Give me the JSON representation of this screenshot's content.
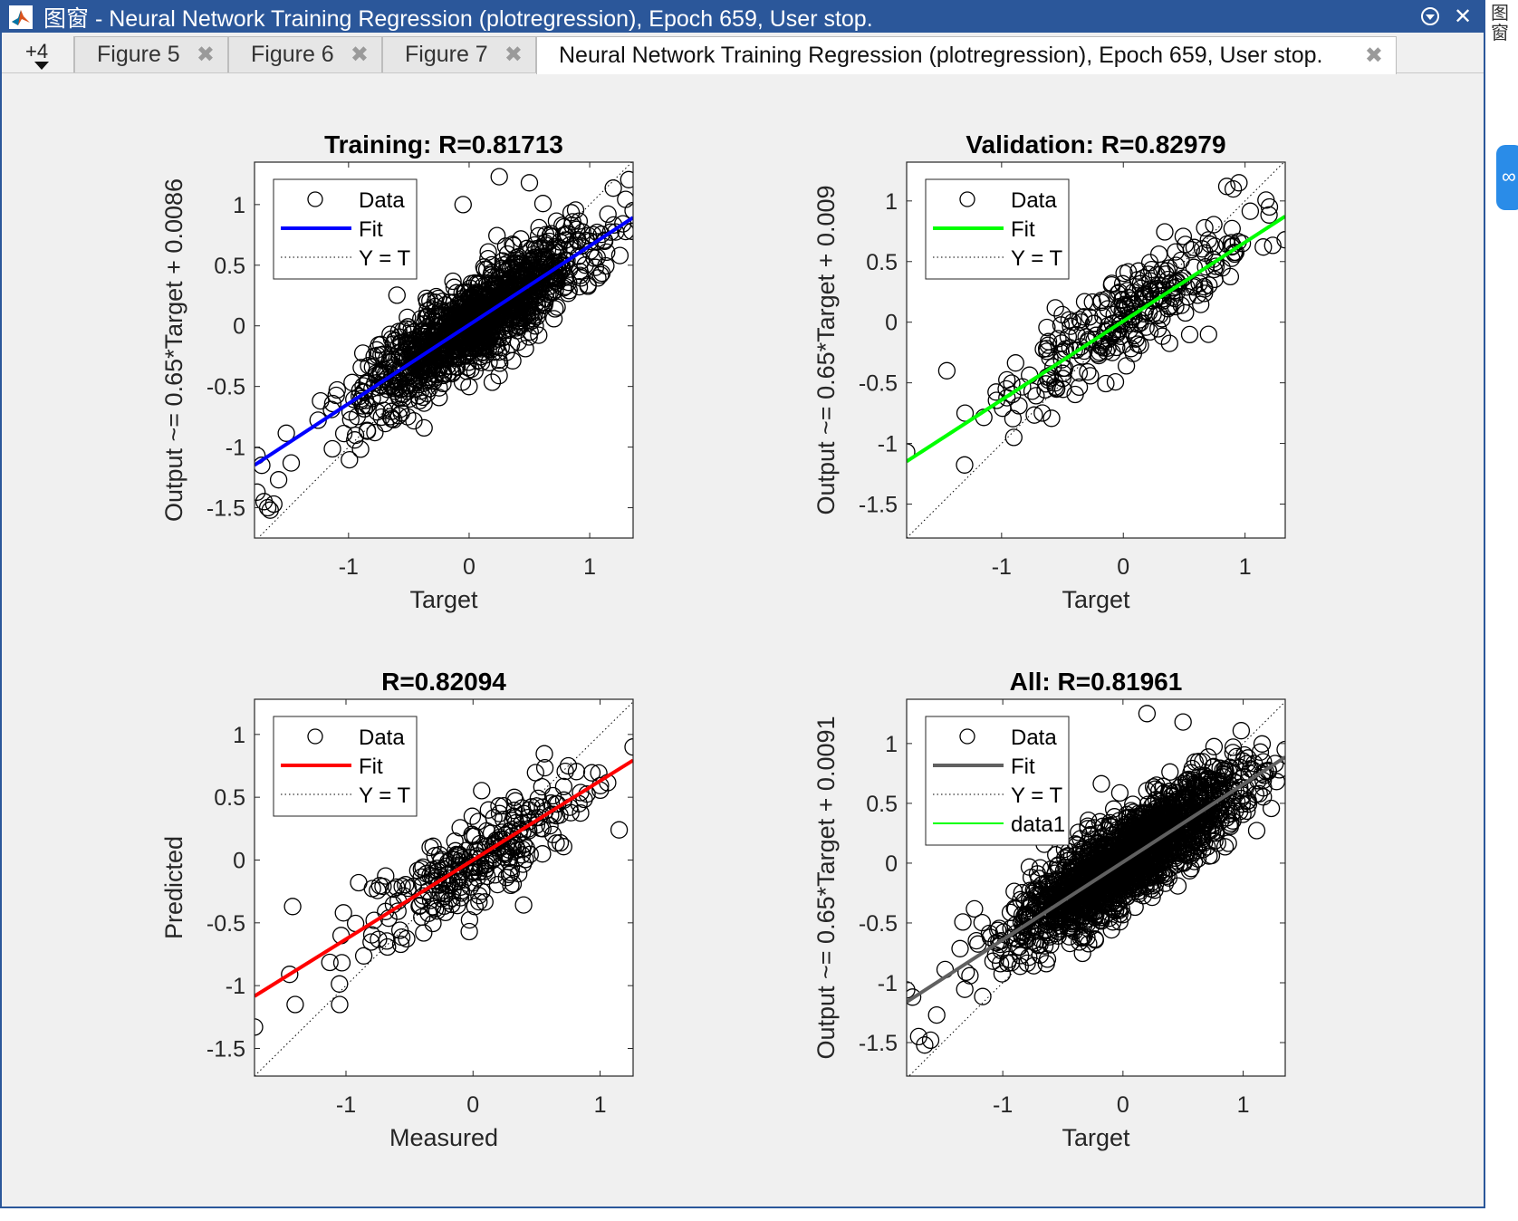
{
  "window": {
    "title": "图窗 - Neural Network Training Regression (plotregression), Epoch 659, User stop."
  },
  "tabs": {
    "overflow_label": "+4",
    "items": [
      {
        "label": "Figure 5",
        "active": false
      },
      {
        "label": "Figure 6",
        "active": false
      },
      {
        "label": "Figure 7",
        "active": false
      },
      {
        "label": "Neural Network Training Regression (plotregression), Epoch 659, User stop.",
        "active": true
      }
    ]
  },
  "sidebar": {
    "glyph": "图窗"
  },
  "colors": {
    "window_frame": "#2b579a",
    "figure_bg": "#f0f0f0",
    "training_fit": "#0000ff",
    "validation_fit": "#00ff00",
    "test_fit": "#ff0000",
    "all_fit": "#606060",
    "data1": "#00ff00"
  },
  "chart_data": [
    {
      "type": "scatter",
      "title": "Training: R=0.81713",
      "xlabel": "Target",
      "ylabel": "Output ~= 0.65*Target + 0.0086",
      "xlim": [
        -1.78,
        1.36
      ],
      "ylim": [
        -1.75,
        1.35
      ],
      "xticks": [
        -1,
        0,
        1
      ],
      "yticks": [
        -1.5,
        -1,
        -0.5,
        0,
        0.5,
        1
      ],
      "legend": {
        "position": "top-left",
        "entries": [
          "Data",
          "Fit",
          "Y = T"
        ]
      },
      "series": [
        {
          "name": "Data",
          "kind": "points",
          "approx_count": 1300,
          "r": 0.81713,
          "fit_slope": 0.65,
          "fit_intercept": 0.0086,
          "x_range": [
            -1.76,
            1.36
          ],
          "points_sample": [
            [
              -1.76,
              -1.07
            ],
            [
              -1.72,
              -1.15
            ],
            [
              -1.7,
              -1.45
            ],
            [
              -1.67,
              -1.5
            ],
            [
              -1.65,
              -1.52
            ],
            [
              -1.62,
              -1.47
            ],
            [
              -1.58,
              -1.27
            ],
            [
              1.36,
              0.95
            ],
            [
              1.35,
              0.78
            ],
            [
              1.25,
              0.58
            ],
            [
              0.25,
              1.23
            ],
            [
              0.5,
              1.18
            ],
            [
              -0.05,
              1.0
            ]
          ]
        },
        {
          "name": "Fit",
          "kind": "line",
          "color": "#0000ff",
          "slope": 0.65,
          "intercept": 0.0086
        },
        {
          "name": "Y = T",
          "kind": "line",
          "style": "dotted",
          "slope": 1,
          "intercept": 0
        }
      ]
    },
    {
      "type": "scatter",
      "title": "Validation: R=0.82979",
      "xlabel": "Target",
      "ylabel": "Output ~= 0.65*Target + 0.009",
      "xlim": [
        -1.78,
        1.33
      ],
      "ylim": [
        -1.78,
        1.32
      ],
      "xticks": [
        -1,
        0,
        1
      ],
      "yticks": [
        -1.5,
        -1,
        -0.5,
        0,
        0.5,
        1
      ],
      "legend": {
        "position": "top-left",
        "entries": [
          "Data",
          "Fit",
          "Y = T"
        ]
      },
      "series": [
        {
          "name": "Data",
          "kind": "points",
          "approx_count": 280,
          "r": 0.82979,
          "fit_slope": 0.65,
          "fit_intercept": 0.009,
          "x_range": [
            -1.78,
            1.33
          ],
          "points_sample": [
            [
              -1.78,
              -1.07
            ],
            [
              -1.45,
              -0.4
            ],
            [
              -1.3,
              -0.75
            ],
            [
              -0.9,
              -0.95
            ],
            [
              1.33,
              0.68
            ],
            [
              1.2,
              0.95
            ],
            [
              0.95,
              1.15
            ],
            [
              0.85,
              1.12
            ],
            [
              0.7,
              -0.1
            ],
            [
              1.15,
              0.62
            ]
          ]
        },
        {
          "name": "Fit",
          "kind": "line",
          "color": "#00ff00",
          "slope": 0.65,
          "intercept": 0.009
        },
        {
          "name": "Y = T",
          "kind": "line",
          "style": "dotted",
          "slope": 1,
          "intercept": 0
        }
      ]
    },
    {
      "type": "scatter",
      "title": "R=0.82094",
      "xlabel": "Measured",
      "ylabel": "Predicted",
      "xlim": [
        -1.72,
        1.26
      ],
      "ylim": [
        -1.72,
        1.28
      ],
      "xticks": [
        -1,
        0,
        1
      ],
      "yticks": [
        -1.5,
        -1,
        -0.5,
        0,
        0.5,
        1
      ],
      "legend": {
        "position": "top-left",
        "entries": [
          "Data",
          "Fit",
          "Y = T"
        ]
      },
      "series": [
        {
          "name": "Data",
          "kind": "points",
          "approx_count": 280,
          "r": 0.82094,
          "x_range": [
            -1.72,
            1.26
          ],
          "points_sample": [
            [
              -1.72,
              -1.33
            ],
            [
              -1.4,
              -1.15
            ],
            [
              -1.05,
              -1.15
            ],
            [
              -1.42,
              -0.37
            ],
            [
              -0.9,
              -0.18
            ],
            [
              0.3,
              -0.1
            ],
            [
              -0.03,
              -0.57
            ],
            [
              1.26,
              0.9
            ],
            [
              1.15,
              0.24
            ],
            [
              0.75,
              0.75
            ]
          ]
        },
        {
          "name": "Fit",
          "kind": "line",
          "color": "#ff0000",
          "slope": 0.63,
          "intercept": 0.0
        },
        {
          "name": "Y = T",
          "kind": "line",
          "style": "dotted",
          "slope": 1,
          "intercept": 0
        }
      ]
    },
    {
      "type": "scatter",
      "title": "All: R=0.81961",
      "xlabel": "Target",
      "ylabel": "Output ~= 0.65*Target + 0.0091",
      "xlim": [
        -1.8,
        1.35
      ],
      "ylim": [
        -1.78,
        1.37
      ],
      "xticks": [
        -1,
        0,
        1
      ],
      "yticks": [
        -1.5,
        -1,
        -0.5,
        0,
        0.5,
        1
      ],
      "legend": {
        "position": "top-left",
        "entries": [
          "Data",
          "Fit",
          "Y = T",
          "data1"
        ]
      },
      "series": [
        {
          "name": "Data",
          "kind": "points",
          "approx_count": 1860,
          "r": 0.81961,
          "fit_slope": 0.65,
          "fit_intercept": 0.0091,
          "x_range": [
            -1.8,
            1.35
          ],
          "points_sample": [
            [
              -1.8,
              -1.06
            ],
            [
              -1.75,
              -1.12
            ],
            [
              -1.7,
              -1.45
            ],
            [
              -1.65,
              -1.52
            ],
            [
              -1.6,
              -1.48
            ],
            [
              -1.55,
              -1.27
            ],
            [
              0.2,
              1.25
            ],
            [
              0.5,
              1.18
            ],
            [
              1.35,
              0.95
            ],
            [
              1.3,
              0.78
            ]
          ]
        },
        {
          "name": "Fit",
          "kind": "line",
          "color": "#606060",
          "slope": 0.65,
          "intercept": 0.0091
        },
        {
          "name": "Y = T",
          "kind": "line",
          "style": "dotted",
          "slope": 1,
          "intercept": 0
        },
        {
          "name": "data1",
          "kind": "line",
          "color": "#00ff00"
        }
      ]
    }
  ]
}
